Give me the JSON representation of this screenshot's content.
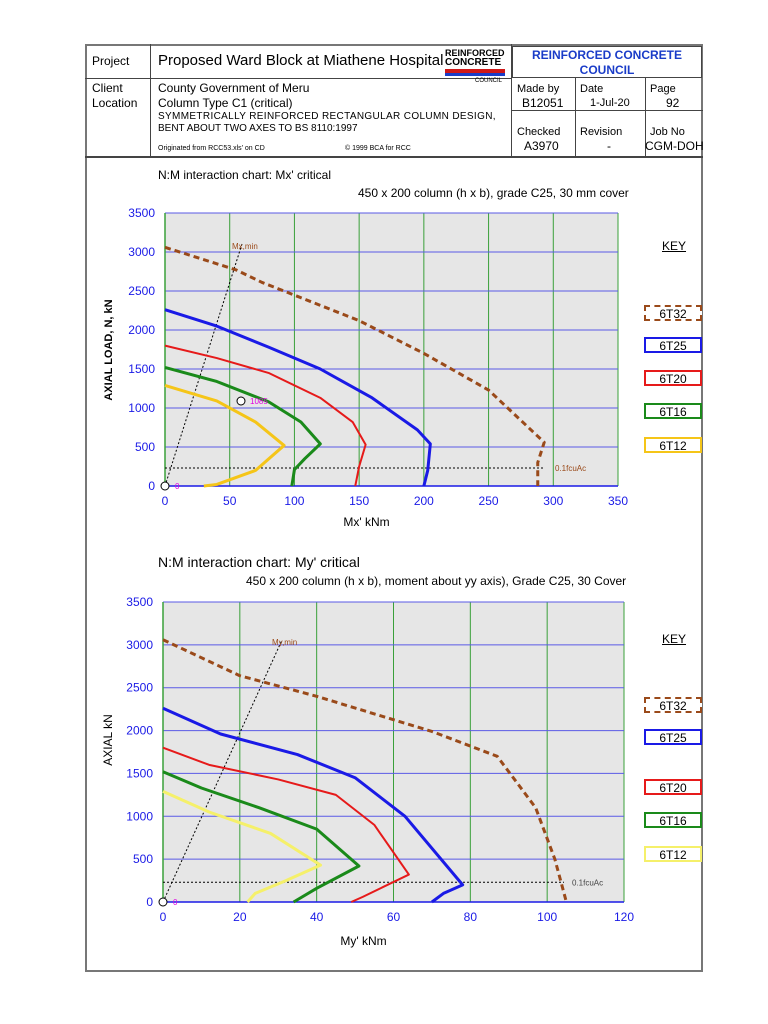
{
  "header": {
    "project_label": "Project",
    "project_value": "Proposed Ward Block at Miathene Hospital",
    "client_label": "Client",
    "client_value": "County Government of Meru",
    "location_label": "Location",
    "location_value": "Column Type C1 (critical)",
    "description_line1": "SYMMETRICALLY REINFORCED RECTANGULAR COLUMN DESIGN,",
    "description_line2": "BENT ABOUT TWO AXES TO BS 8110:1997",
    "origin_note": "Originated from RCC53.xls' on CD",
    "copyright_note": "© 1999 BCA for RCC",
    "logo_line1": "REINFORCED",
    "logo_line2": "CONCRETE",
    "logo_line3": "COUNCIL",
    "org_name": "REINFORCED CONCRETE COUNCIL",
    "made_by_label": "Made by",
    "made_by_value": "B12051",
    "date_label": "Date",
    "date_value": "1-Jul-20",
    "page_label": "Page",
    "page_value": "92",
    "checked_label": "Checked",
    "checked_value": "A3970",
    "revision_label": "Revision",
    "revision_value": "-",
    "job_no_label": "Job No",
    "job_no_value": "CGM-DOH"
  },
  "key_label": "KEY",
  "colors": {
    "6T32": "#9a4a1a",
    "6T25": "#1a1ae6",
    "6T20": "#e61a1a",
    "6T16": "#1a8a1a",
    "6T12_top": "#f5c518",
    "6T12_bottom": "#f5f06a",
    "plot_bg": "#e6e6e6",
    "grid_v": "#3aa03a",
    "grid_h": "#5a5ae6",
    "axis_tick": "#1a1ae6"
  },
  "chart_data": [
    {
      "type": "line",
      "title": "N:M interaction chart: Mx' critical",
      "subtitle": "450 x 200 column (h x b), grade C25, 30 mm cover",
      "xlabel": "Mx'  kNm",
      "ylabel": "AXIAL LOAD, N, kN",
      "xlim": [
        0,
        350
      ],
      "ylim": [
        0,
        3500
      ],
      "xticks": [
        0,
        50,
        100,
        150,
        200,
        250,
        300,
        350
      ],
      "yticks": [
        0,
        500,
        1000,
        1500,
        2000,
        2500,
        3000,
        3500
      ],
      "grid": true,
      "legend_position": "right",
      "series": [
        {
          "name": "6T32",
          "style": "dashed",
          "x": [
            0,
            55,
            75,
            150,
            200,
            250,
            293,
            288,
            288
          ],
          "y": [
            3060,
            2770,
            2610,
            2120,
            1700,
            1230,
            560,
            300,
            0
          ]
        },
        {
          "name": "6T25",
          "style": "solid",
          "x": [
            0,
            40,
            80,
            120,
            160,
            195,
            205,
            203,
            200
          ],
          "y": [
            2260,
            2050,
            1780,
            1500,
            1130,
            720,
            540,
            200,
            0
          ]
        },
        {
          "name": "6T20",
          "style": "solid",
          "x": [
            0,
            40,
            80,
            120,
            145,
            155,
            150,
            147
          ],
          "y": [
            1800,
            1640,
            1450,
            1130,
            820,
            530,
            250,
            0
          ]
        },
        {
          "name": "6T16",
          "style": "solid",
          "x": [
            0,
            40,
            80,
            105,
            120,
            108,
            100,
            98
          ],
          "y": [
            1520,
            1340,
            1080,
            820,
            540,
            350,
            210,
            0
          ]
        },
        {
          "name": "6T12",
          "style": "solid",
          "x": [
            0,
            40,
            70,
            92,
            70,
            40,
            30
          ],
          "y": [
            1290,
            1090,
            820,
            520,
            200,
            20,
            0
          ]
        }
      ],
      "annotations": {
        "min_line_label": "Mx,min",
        "marker_value_label": "1085",
        "origin_label": "0",
        "fcu_label": "0.1fcuAc",
        "fcu_level": 230
      }
    },
    {
      "type": "line",
      "title": "N:M interaction chart: My' critical",
      "subtitle": "450 x 200 column (h x b), moment about yy axis), Grade C25, 30 Cover",
      "xlabel": "My'  kNm",
      "ylabel": "AXIAL  kN",
      "xlim": [
        0,
        120
      ],
      "ylim": [
        0,
        3500
      ],
      "xticks": [
        0,
        20,
        40,
        60,
        80,
        100,
        120
      ],
      "yticks": [
        0,
        500,
        1000,
        1500,
        2000,
        2500,
        3000,
        3500
      ],
      "grid": true,
      "legend_position": "right",
      "series": [
        {
          "name": "6T32",
          "style": "dashed",
          "x": [
            0,
            20,
            40,
            70,
            87,
            97,
            102,
            105
          ],
          "y": [
            3060,
            2640,
            2400,
            1990,
            1700,
            1100,
            500,
            0
          ]
        },
        {
          "name": "6T25",
          "style": "solid",
          "x": [
            0,
            15,
            35,
            50,
            63,
            78,
            73,
            70
          ],
          "y": [
            2260,
            1960,
            1720,
            1450,
            1000,
            200,
            100,
            0
          ]
        },
        {
          "name": "6T20",
          "style": "solid",
          "x": [
            0,
            12,
            30,
            45,
            55,
            64,
            52,
            49
          ],
          "y": [
            1800,
            1600,
            1430,
            1250,
            900,
            320,
            60,
            0
          ]
        },
        {
          "name": "6T16",
          "style": "solid",
          "x": [
            0,
            10,
            25,
            40,
            51,
            40,
            34
          ],
          "y": [
            1520,
            1330,
            1100,
            850,
            420,
            160,
            0
          ]
        },
        {
          "name": "6T12",
          "style": "solid",
          "x": [
            0,
            12,
            28,
            41,
            32,
            24,
            22
          ],
          "y": [
            1290,
            1050,
            800,
            430,
            250,
            100,
            0
          ]
        }
      ],
      "annotations": {
        "min_line_label": "My,min",
        "origin_label": "0",
        "fcu_label": "0.1fcuAc",
        "fcu_level": 230
      }
    }
  ]
}
